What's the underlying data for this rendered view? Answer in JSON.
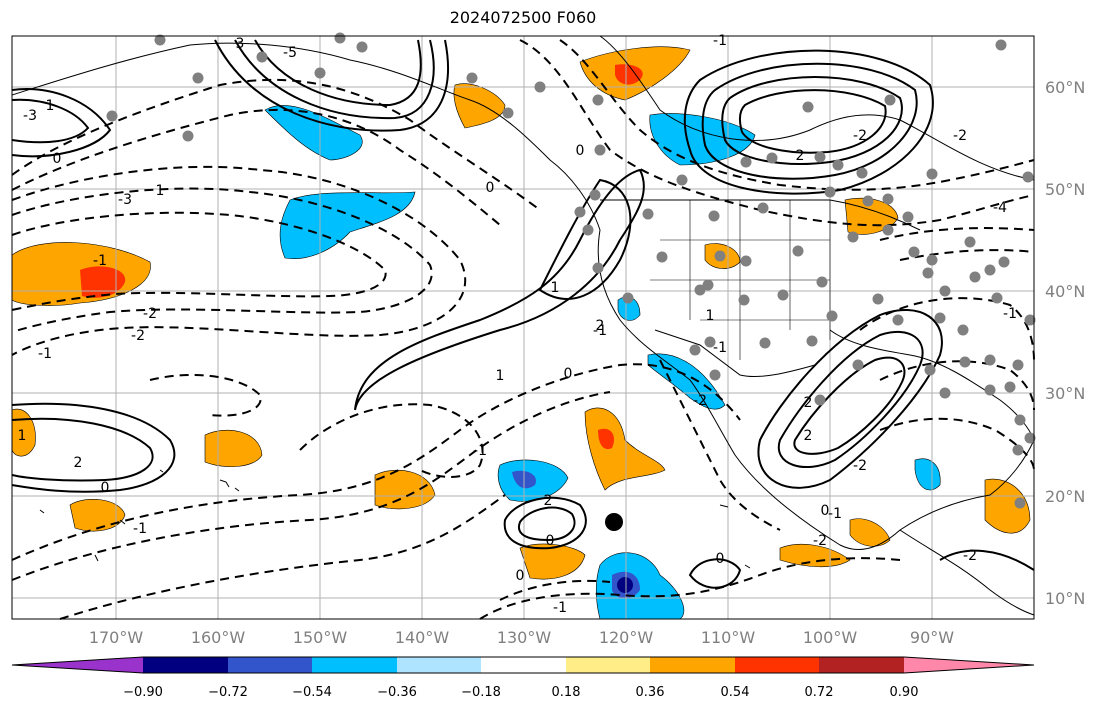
{
  "title": "2024072500 F060",
  "lon_labels": [
    "170°W",
    "160°W",
    "150°W",
    "140°W",
    "130°W",
    "120°W",
    "110°W",
    "100°W",
    "90°W"
  ],
  "lat_labels": [
    "60°N",
    "50°N",
    "40°N",
    "30°N",
    "20°N",
    "10°N"
  ],
  "colorbar": {
    "ticks": [
      "−0.90",
      "−0.72",
      "−0.54",
      "−0.36",
      "−0.18",
      "0.18",
      "0.36",
      "0.54",
      "0.72",
      "0.90"
    ],
    "colors": [
      "#9933cc",
      "#000080",
      "#3355cc",
      "#00bfff",
      "#aee4ff",
      "#ffffff",
      "#ffee88",
      "#ffa500",
      "#ff3300",
      "#b22222",
      "#ff88aa"
    ]
  },
  "contour_labels": {
    "positive": [
      "3",
      "1",
      "2",
      "1",
      "1",
      "1",
      "1",
      "2",
      "2",
      "2",
      "2",
      "1",
      "2"
    ],
    "negative": [
      "-3",
      "-5",
      "-3",
      "-1",
      "-2",
      "-2",
      "-1",
      "-4",
      "-2",
      "-2",
      "-1",
      "-1",
      "-2",
      "-1",
      "-1",
      "-1",
      "-1",
      "-1",
      "-2",
      "-2",
      "-1",
      "-2"
    ],
    "zero": [
      "0",
      "0",
      "0",
      "0",
      "0",
      "0",
      "0",
      "0",
      "0"
    ]
  },
  "colors": {
    "land": "#000000",
    "grid": "#b0b0b0",
    "contour": "#000000",
    "station": "#808080",
    "marker": "#000000"
  }
}
